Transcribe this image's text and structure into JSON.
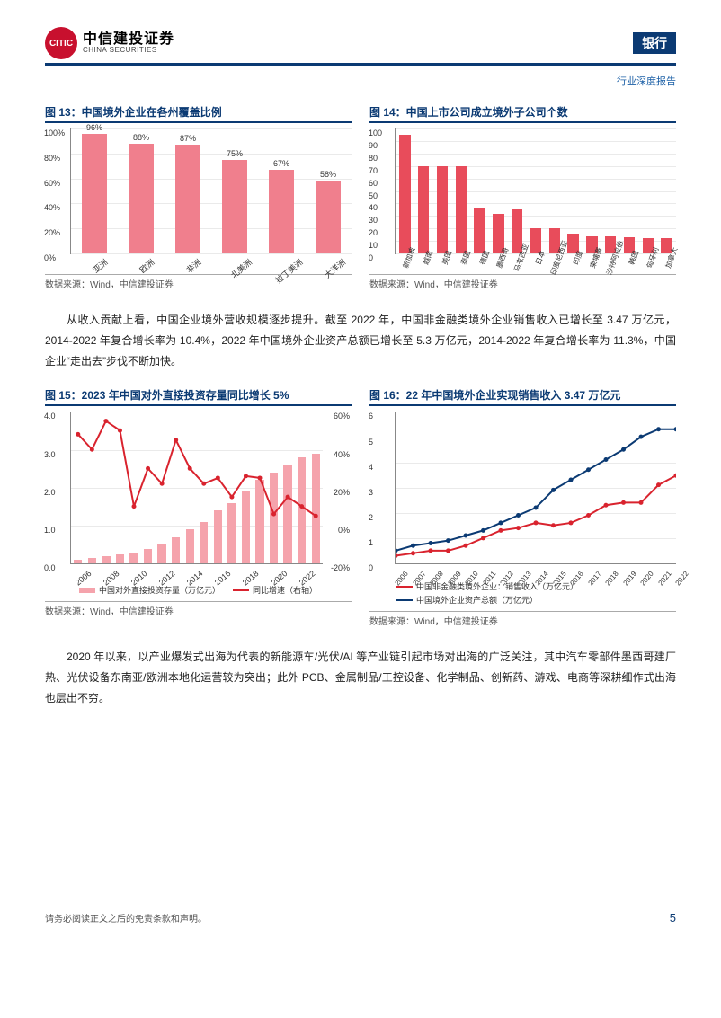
{
  "header": {
    "logo_cn": "中信建投证券",
    "logo_en": "CHINA SECURITIES",
    "logo_mark": "CITIC",
    "right_label": "银行",
    "subheader": "行业深度报告"
  },
  "chart13": {
    "title": "图 13：中国境外企业在各州覆盖比例",
    "categories": [
      "亚洲",
      "欧洲",
      "非洲",
      "北美洲",
      "拉丁美洲",
      "大洋洲"
    ],
    "values": [
      96,
      88,
      87,
      75,
      67,
      58
    ],
    "value_labels": [
      "96%",
      "88%",
      "87%",
      "75%",
      "67%",
      "58%"
    ],
    "yticks": [
      0,
      20,
      40,
      60,
      80,
      100
    ],
    "ytick_labels": [
      "0%",
      "20%",
      "40%",
      "60%",
      "80%",
      "100%"
    ],
    "bar_color": "#f07f8d",
    "grid_color": "#eaeaea",
    "bar_width": 0.55,
    "source": "数据来源：Wind，中信建投证券"
  },
  "chart14": {
    "title": "图 14：中国上市公司成立境外子公司个数",
    "categories": [
      "新加坡",
      "越南",
      "美国",
      "泰国",
      "德国",
      "墨西哥",
      "马来西亚",
      "日本",
      "印度尼西亚",
      "印度",
      "柬埔寨",
      "沙特阿拉伯",
      "韩国",
      "匈牙利",
      "加拿大"
    ],
    "values": [
      95,
      70,
      70,
      70,
      36,
      32,
      35,
      20,
      20,
      16,
      14,
      14,
      13,
      12,
      12
    ],
    "yticks": [
      0,
      10,
      20,
      30,
      40,
      50,
      60,
      70,
      80,
      90,
      100
    ],
    "bar_color": "#e84c5b",
    "grid_color": "#eaeaea",
    "source": "数据来源：Wind，中信建投证券"
  },
  "para1": "从收入贡献上看，中国企业境外营收规模逐步提升。截至 2022 年，中国非金融类境外企业销售收入已增长至 3.47 万亿元，2014-2022 年复合增长率为 10.4%，2022 年中国境外企业资产总额已增长至 5.3 万亿元，2014-2022 年复合增长率为 11.3%，中国企业“走出去”步伐不断加快。",
  "chart15": {
    "title": "图 15：2023 年中国对外直接投资存量同比增长 5%",
    "years": [
      "2006",
      "2008",
      "2010",
      "2012",
      "2014",
      "2016",
      "2018",
      "2020",
      "2022"
    ],
    "bar_values": [
      0.1,
      0.15,
      0.2,
      0.25,
      0.3,
      0.4,
      0.5,
      0.7,
      0.9,
      1.1,
      1.4,
      1.6,
      1.9,
      2.2,
      2.4,
      2.6,
      2.8,
      2.9
    ],
    "line_values": [
      48,
      40,
      55,
      50,
      10,
      30,
      22,
      45,
      30,
      22,
      25,
      15,
      26,
      25,
      6,
      15,
      10,
      5
    ],
    "yticks_l": [
      0,
      1,
      2,
      3,
      4
    ],
    "ytick_labels_l": [
      "0.0",
      "1.0",
      "2.0",
      "3.0",
      "4.0"
    ],
    "yticks_r": [
      -20,
      0,
      20,
      40,
      60
    ],
    "ytick_labels_r": [
      "-20%",
      "0%",
      "20%",
      "40%",
      "60%"
    ],
    "bar_color": "#f5a3ac",
    "line_color": "#d9232e",
    "legend1": "中国对外直接投资存量（万亿元）",
    "legend2": "同比增速（右轴）",
    "source": "数据来源：Wind，中信建投证券"
  },
  "chart16": {
    "title": "图 16：22 年中国境外企业实现销售收入 3.47 万亿元",
    "years": [
      "2006",
      "2007",
      "2008",
      "2009",
      "2010",
      "2011",
      "2012",
      "2013",
      "2014",
      "2015",
      "2016",
      "2017",
      "2018",
      "2019",
      "2020",
      "2021",
      "2022"
    ],
    "line1_values": [
      0.3,
      0.4,
      0.5,
      0.5,
      0.7,
      1.0,
      1.3,
      1.4,
      1.6,
      1.5,
      1.6,
      1.9,
      2.3,
      2.4,
      2.4,
      3.1,
      3.47
    ],
    "line2_values": [
      0.5,
      0.7,
      0.8,
      0.9,
      1.1,
      1.3,
      1.6,
      1.9,
      2.2,
      2.9,
      3.3,
      3.7,
      4.1,
      4.5,
      5.0,
      5.3,
      5.3
    ],
    "yticks": [
      0,
      1,
      2,
      3,
      4,
      5,
      6
    ],
    "line1_color": "#d9232e",
    "line2_color": "#0b3a73",
    "legend1": "中国非金融类境外企业：销售收入（万亿元）",
    "legend2": "中国境外企业资产总额（万亿元）",
    "source": "数据来源：Wind，中信建投证券"
  },
  "para2": "2020 年以来，以产业爆发式出海为代表的新能源车/光伏/AI 等产业链引起市场对出海的广泛关注，其中汽车零部件墨西哥建厂热、光伏设备东南亚/欧洲本地化运营较为突出；此外 PCB、金属制品/工控设备、化学制品、创新药、游戏、电商等深耕细作式出海也层出不穷。",
  "footer": {
    "disclaimer": "请务必阅读正文之后的免责条款和声明。",
    "page": "5"
  }
}
